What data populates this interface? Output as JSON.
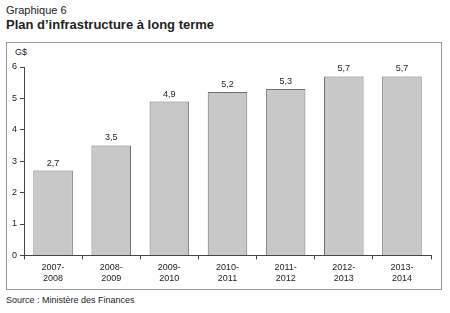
{
  "chart_data": {
    "type": "bar",
    "subtitle": "Graphique 6",
    "title": "Plan d’infrastructure à long terme",
    "y_label": "G$",
    "source": "Source : Ministère des Finances",
    "categories": [
      "2007-2008",
      "2008-2009",
      "2009-2010",
      "2010-2011",
      "2011-2012",
      "2012-2013",
      "2013-2014"
    ],
    "values": [
      2.7,
      3.5,
      4.9,
      5.2,
      5.3,
      5.7,
      5.7
    ],
    "value_labels": [
      "2,7",
      "3,5",
      "4,9",
      "5,2",
      "5,3",
      "5,7",
      "5,7"
    ],
    "color": "#c8c8c8",
    "ylim": [
      0,
      6
    ],
    "yticks": [
      0,
      1,
      2,
      3,
      4,
      5,
      6
    ],
    "grid": false,
    "data_labels": true
  }
}
